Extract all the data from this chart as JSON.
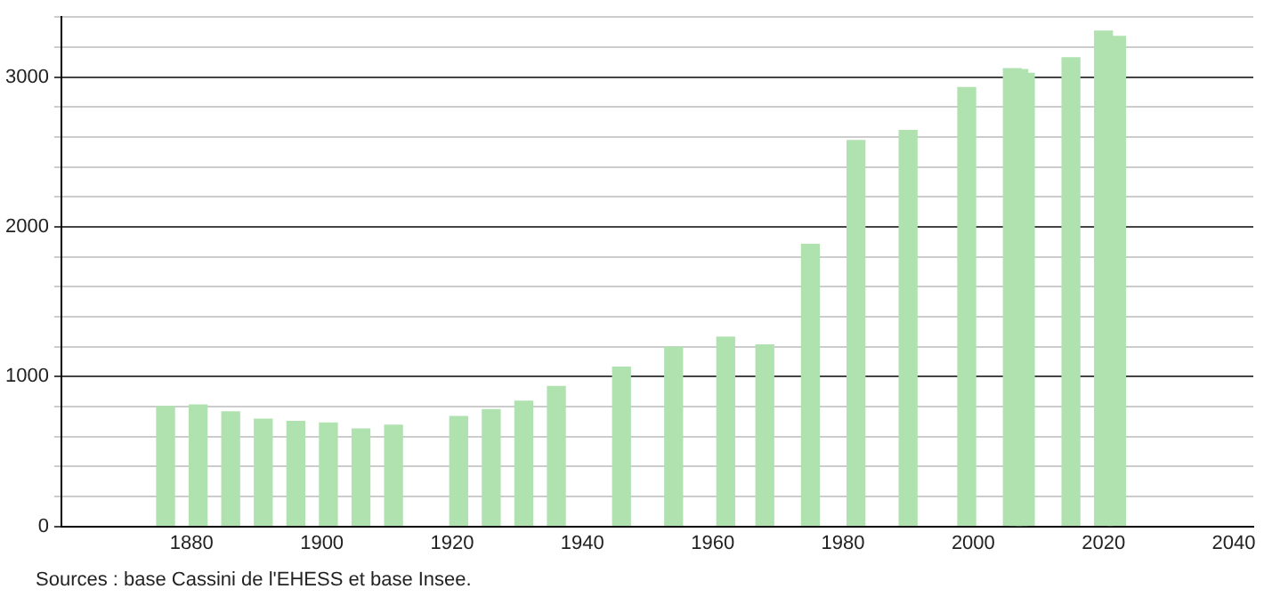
{
  "chart_data": {
    "type": "bar",
    "x": [
      1876,
      1881,
      1886,
      1891,
      1896,
      1901,
      1906,
      1911,
      1921,
      1926,
      1931,
      1936,
      1946,
      1954,
      1962,
      1968,
      1975,
      1982,
      1990,
      1999,
      2006,
      2007,
      2008,
      2015,
      2020,
      2022
    ],
    "values": [
      800,
      810,
      765,
      715,
      700,
      690,
      650,
      675,
      733,
      780,
      835,
      933,
      1063,
      1196,
      1263,
      1212,
      1882,
      2576,
      2643,
      2929,
      3055,
      3050,
      3024,
      3129,
      3306,
      3271
    ],
    "color": "#b0e2b0",
    "xlim": [
      1860,
      2043
    ],
    "xticks": [
      1880,
      1900,
      1920,
      1940,
      1960,
      1980,
      2000,
      2020,
      2040
    ],
    "ylim": [
      0,
      3400
    ],
    "yticks": [
      0,
      {
        "value": 200,
        "label": null
      },
      {
        "value": 400,
        "label": null
      },
      {
        "value": 600,
        "label": null
      },
      {
        "value": 800,
        "label": null
      },
      1000,
      {
        "value": 1200,
        "label": null
      },
      {
        "value": 1400,
        "label": null
      },
      {
        "value": 1600,
        "label": null
      },
      {
        "value": 1800,
        "label": null
      },
      2000,
      {
        "value": 2200,
        "label": null
      },
      {
        "value": 2400,
        "label": null
      },
      {
        "value": 2600,
        "label": null
      },
      {
        "value": 2800,
        "label": null
      },
      3000,
      {
        "value": 3200,
        "label": null
      },
      {
        "value": 3400,
        "label": null
      }
    ],
    "grid": "y",
    "legend": false,
    "annotations": [
      "Sources : base Cassini de l'EHESS et base Insee."
    ]
  }
}
